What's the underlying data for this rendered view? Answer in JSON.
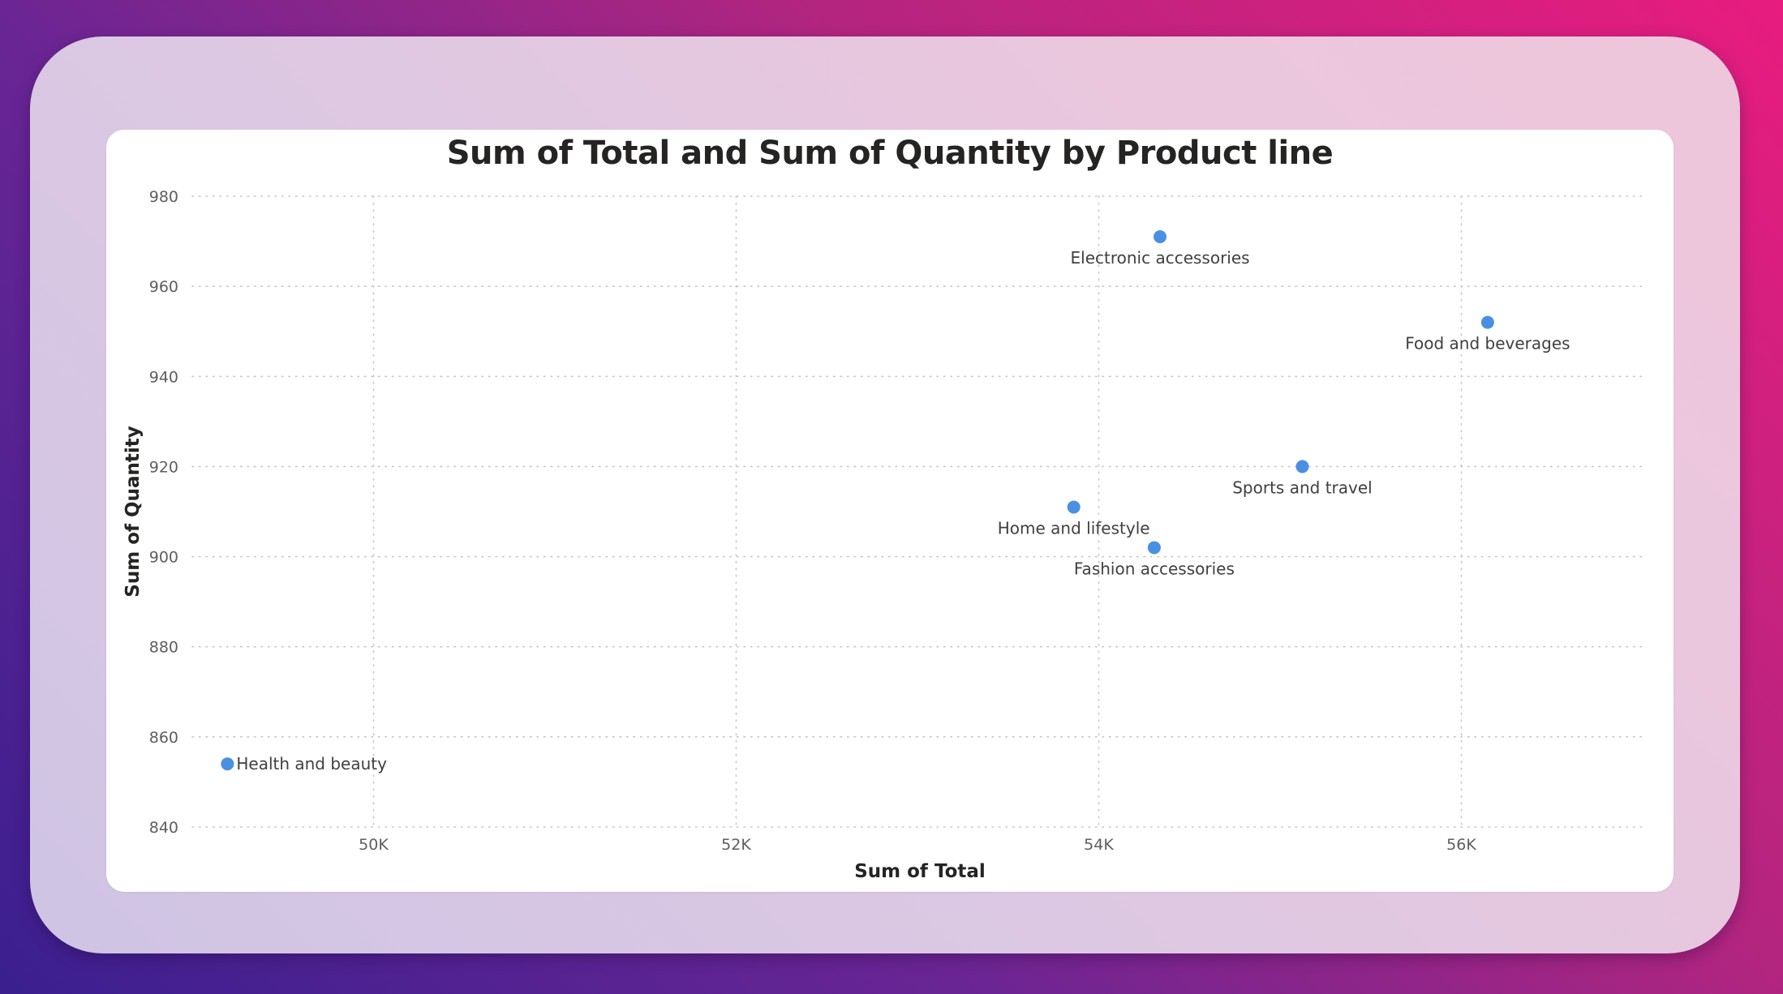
{
  "chart_data": {
    "type": "scatter",
    "title": "Sum of Total and Sum of Quantity by Product line",
    "xlabel": "Sum of Total",
    "ylabel": "Sum of Quantity",
    "xlim": [
      49000,
      57000
    ],
    "ylim": [
      840,
      980
    ],
    "x_ticks": [
      {
        "value": 50000,
        "label": "50K"
      },
      {
        "value": 52000,
        "label": "52K"
      },
      {
        "value": 54000,
        "label": "54K"
      },
      {
        "value": 56000,
        "label": "56K"
      }
    ],
    "y_ticks": [
      {
        "value": 840,
        "label": "840"
      },
      {
        "value": 860,
        "label": "860"
      },
      {
        "value": 880,
        "label": "880"
      },
      {
        "value": 900,
        "label": "900"
      },
      {
        "value": 920,
        "label": "920"
      },
      {
        "value": 940,
        "label": "940"
      },
      {
        "value": 960,
        "label": "960"
      },
      {
        "value": 980,
        "label": "980"
      }
    ],
    "grid": true,
    "marker_color": "#4a90e2",
    "points": [
      {
        "label": "Electronic accessories",
        "x": 54338,
        "y": 971,
        "label_position": "below"
      },
      {
        "label": "Food and beverages",
        "x": 56145,
        "y": 952,
        "label_position": "below"
      },
      {
        "label": "Sports and travel",
        "x": 55123,
        "y": 920,
        "label_position": "below"
      },
      {
        "label": "Home and lifestyle",
        "x": 53862,
        "y": 911,
        "label_position": "below"
      },
      {
        "label": "Fashion accessories",
        "x": 54306,
        "y": 902,
        "label_position": "below"
      },
      {
        "label": "Health and beauty",
        "x": 49194,
        "y": 854,
        "label_position": "right"
      }
    ]
  },
  "colors": {
    "background_gradient_start": "#3b1f8f",
    "background_gradient_end": "#e81c7f",
    "card_background": "#ffffff",
    "marker": "#4a90e2"
  }
}
